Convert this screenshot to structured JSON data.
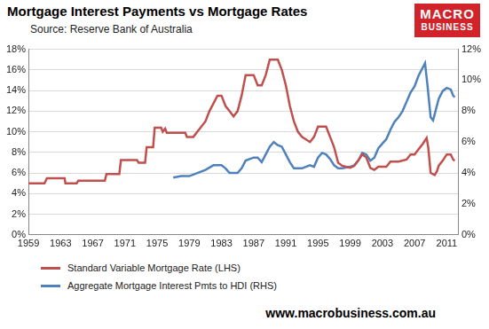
{
  "chart_data": {
    "type": "line",
    "title": "Mortgage Interest Payments vs Mortgage Rates",
    "subtitle": "Source: Reserve Bank of Australia",
    "logo_text": [
      "MACRO",
      "BUSINESS"
    ],
    "source_url": "www.macrobusiness.com.au",
    "xlim": [
      1959,
      2012.5
    ],
    "xticks": [
      1959,
      1963,
      1967,
      1971,
      1975,
      1979,
      1983,
      1987,
      1991,
      1995,
      1999,
      2003,
      2007,
      2011
    ],
    "ylim": [
      0,
      18
    ],
    "yticks": [
      {
        "value": 0,
        "label": "0%"
      },
      {
        "value": 2,
        "label": "2%"
      },
      {
        "value": 4,
        "label": "4%"
      },
      {
        "value": 6,
        "label": "6%"
      },
      {
        "value": 8,
        "label": "8%"
      },
      {
        "value": 10,
        "label": "10%"
      },
      {
        "value": 12,
        "label": "12%"
      },
      {
        "value": 14,
        "label": "14%"
      },
      {
        "value": 16,
        "label": "16%"
      },
      {
        "value": 18,
        "label": "18%"
      }
    ],
    "y2lim": [
      0,
      12
    ],
    "y2ticks": [
      {
        "value": 0,
        "label": "0%"
      },
      {
        "value": 2,
        "label": "2%"
      },
      {
        "value": 4,
        "label": "4%"
      },
      {
        "value": 6,
        "label": "6%"
      },
      {
        "value": 8,
        "label": "8%"
      },
      {
        "value": 10,
        "label": "10%"
      },
      {
        "value": 12,
        "label": "12%"
      }
    ],
    "grid": true,
    "legend": "bottom",
    "series": [
      {
        "name": "Standard Variable Mortgage Rate (LHS)",
        "color": "#c0504d",
        "axis": "y",
        "x": [
          1959,
          1961,
          1961.3,
          1963.5,
          1963.6,
          1965,
          1965.2,
          1968.5,
          1968.7,
          1970.3,
          1970.5,
          1972.5,
          1972.7,
          1973.5,
          1973.7,
          1974.5,
          1974.7,
          1975.5,
          1975.7,
          1976,
          1976.2,
          1978.5,
          1978.7,
          1979.5,
          1980,
          1981,
          1981.5,
          1982.5,
          1983,
          1983.5,
          1984,
          1984.5,
          1985,
          1985.5,
          1986,
          1987,
          1987.5,
          1988,
          1988.5,
          1989,
          1990,
          1990.5,
          1991,
          1991.5,
          1992,
          1992.5,
          1993,
          1994,
          1994.5,
          1995,
          1996,
          1996.5,
          1997,
          1997.5,
          1998,
          1999,
          1999.5,
          2000,
          2000.5,
          2001,
          2001.5,
          2002,
          2002.5,
          2003.5,
          2004,
          2005,
          2006,
          2006.5,
          2007,
          2007.5,
          2008,
          2008.5,
          2008.7,
          2009,
          2009.5,
          2009.8,
          2010,
          2010.5,
          2011,
          2011.5,
          2011.8,
          2012
        ],
        "values": [
          5.0,
          5.0,
          5.5,
          5.5,
          5.0,
          5.0,
          5.25,
          5.25,
          5.9,
          5.9,
          7.25,
          7.25,
          7.0,
          7.0,
          8.5,
          8.5,
          10.4,
          10.4,
          10.0,
          10.3,
          9.9,
          9.9,
          9.5,
          9.5,
          10.0,
          11.0,
          12.0,
          13.5,
          13.5,
          12.5,
          12.0,
          11.5,
          12.0,
          13.5,
          15.5,
          15.5,
          14.5,
          14.5,
          15.5,
          17.0,
          17.0,
          16.0,
          14.5,
          12.5,
          11.0,
          10.0,
          9.5,
          9.0,
          9.5,
          10.5,
          10.5,
          9.5,
          8.5,
          7.0,
          6.7,
          6.5,
          6.7,
          7.2,
          7.8,
          7.5,
          6.5,
          6.3,
          6.6,
          6.6,
          7.1,
          7.1,
          7.3,
          7.8,
          7.8,
          8.3,
          8.8,
          9.4,
          8.5,
          6.0,
          5.8,
          6.2,
          6.7,
          7.2,
          7.8,
          7.8,
          7.3,
          7.2
        ]
      },
      {
        "name": "Aggregate Mortgage Interest Pmts to HDI (RHS)",
        "color": "#4f81bd",
        "axis": "y2",
        "x": [
          1977,
          1978,
          1979,
          1980,
          1981,
          1982,
          1983,
          1983.5,
          1984,
          1985,
          1985.5,
          1986,
          1987,
          1987.5,
          1988,
          1988.5,
          1989,
          1989.5,
          1990,
          1990.5,
          1991,
          1991.5,
          1992,
          1993,
          1994,
          1994.5,
          1995,
          1995.5,
          1996,
          1996.5,
          1997,
          1997.5,
          1998,
          1999,
          1999.5,
          2000,
          2000.5,
          2001,
          2001.5,
          2002,
          2002.5,
          2003,
          2003.5,
          2004,
          2004.5,
          2005,
          2005.5,
          2006,
          2006.5,
          2007,
          2007.5,
          2008,
          2008.3,
          2008.6,
          2009,
          2009.3,
          2009.7,
          2010,
          2010.5,
          2011,
          2011.5,
          2011.8,
          2012
        ],
        "values": [
          3.7,
          3.8,
          3.8,
          4.0,
          4.2,
          4.5,
          4.5,
          4.3,
          4.0,
          4.0,
          4.3,
          4.8,
          5.0,
          5.0,
          4.7,
          5.2,
          5.7,
          6.0,
          5.8,
          5.7,
          5.2,
          4.7,
          4.3,
          4.3,
          4.5,
          4.4,
          5.0,
          5.3,
          5.2,
          4.9,
          4.5,
          4.3,
          4.3,
          4.4,
          4.5,
          4.8,
          5.3,
          5.2,
          4.8,
          5.0,
          5.6,
          5.9,
          6.2,
          6.8,
          7.3,
          7.6,
          8.0,
          8.6,
          9.2,
          9.6,
          10.3,
          10.8,
          11.1,
          9.7,
          7.6,
          7.4,
          8.2,
          8.8,
          9.3,
          9.5,
          9.4,
          9.0,
          8.9
        ]
      }
    ]
  }
}
